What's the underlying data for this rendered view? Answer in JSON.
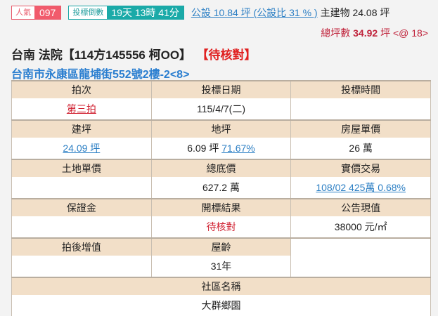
{
  "header": {
    "popularity_label": "人氣",
    "popularity_value": "097",
    "countdown_label": "投標倒數",
    "countdown_value": "19天 13時 41分",
    "public_area_link": "公設 10.84 坪 (公設比 31 % )",
    "main_building": "主建物 24.08 坪",
    "total_label": "總坪數",
    "total_value": "34.92",
    "total_unit": "坪 <@ 18>"
  },
  "case": {
    "title": "台南 法院【114方145556 柯OO】",
    "status": "【待核對】",
    "address": "台南市永康區龍埔街552號2樓-2<8>"
  },
  "table": {
    "h1": [
      "拍次",
      "投標日期",
      "投標時間"
    ],
    "d1": [
      "第三拍",
      "115/4/7(二)",
      ""
    ],
    "h2": [
      "建坪",
      "地坪",
      "房屋單價"
    ],
    "d2": [
      "24.09 坪",
      "6.09 坪",
      "71.67%",
      "26 萬"
    ],
    "h3": [
      "土地單價",
      "總底價",
      "實價交易"
    ],
    "d3": [
      "",
      "627.2 萬",
      "108/02 425萬 0.68%"
    ],
    "h4": [
      "保證金",
      "開標結果",
      "公告現值"
    ],
    "d4": [
      "",
      "待核對",
      "38000 元/㎡"
    ],
    "h5": [
      "拍後增值",
      "屋齡"
    ],
    "d5": [
      "",
      "31年"
    ],
    "h6": "社區名稱",
    "d6": "大群鄉園"
  }
}
